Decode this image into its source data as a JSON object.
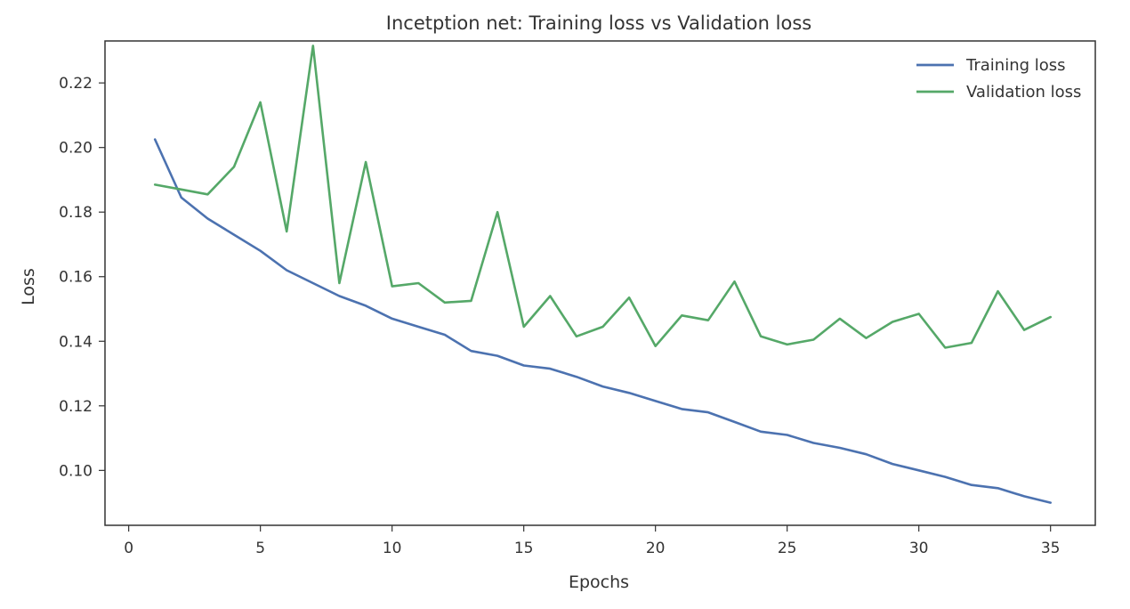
{
  "chart_data": {
    "type": "line",
    "title": "Incetption net: Training loss vs Validation loss",
    "xlabel": "Epochs",
    "ylabel": "Loss",
    "xlim": [
      -0.9,
      36.7
    ],
    "ylim": [
      0.083,
      0.233
    ],
    "xticks": [
      0,
      5,
      10,
      15,
      20,
      25,
      30,
      35
    ],
    "xtick_labels": [
      "0",
      "5",
      "10",
      "15",
      "20",
      "25",
      "30",
      "35"
    ],
    "yticks": [
      0.1,
      0.12,
      0.14,
      0.16,
      0.18,
      0.2,
      0.22
    ],
    "ytick_labels": [
      "0.10",
      "0.12",
      "0.14",
      "0.16",
      "0.18",
      "0.20",
      "0.22"
    ],
    "grid": false,
    "legend_position": "top-right",
    "x": [
      1,
      2,
      3,
      4,
      5,
      6,
      7,
      8,
      9,
      10,
      11,
      12,
      13,
      14,
      15,
      16,
      17,
      18,
      19,
      20,
      21,
      22,
      23,
      24,
      25,
      26,
      27,
      28,
      29,
      30,
      31,
      32,
      33,
      34,
      35
    ],
    "series": [
      {
        "name": "Training loss",
        "color": "#4c72b0",
        "values": [
          0.2025,
          0.1845,
          0.178,
          0.173,
          0.168,
          0.162,
          0.158,
          0.154,
          0.151,
          0.147,
          0.1445,
          0.142,
          0.137,
          0.1355,
          0.1325,
          0.1315,
          0.129,
          0.126,
          0.124,
          0.1215,
          0.119,
          0.118,
          0.115,
          0.112,
          0.111,
          0.1085,
          0.107,
          0.105,
          0.102,
          0.1,
          0.098,
          0.0955,
          0.0945,
          0.092,
          0.09
        ]
      },
      {
        "name": "Validation loss",
        "color": "#55a868",
        "values": [
          0.1885,
          0.187,
          0.1855,
          0.194,
          0.214,
          0.174,
          0.2315,
          0.158,
          0.1955,
          0.157,
          0.158,
          0.152,
          0.1525,
          0.18,
          0.1445,
          0.154,
          0.1415,
          0.1445,
          0.1535,
          0.1385,
          0.148,
          0.1465,
          0.1585,
          0.1415,
          0.139,
          0.1405,
          0.147,
          0.141,
          0.146,
          0.1485,
          0.138,
          0.1395,
          0.1555,
          0.1435,
          0.1475
        ]
      }
    ]
  }
}
